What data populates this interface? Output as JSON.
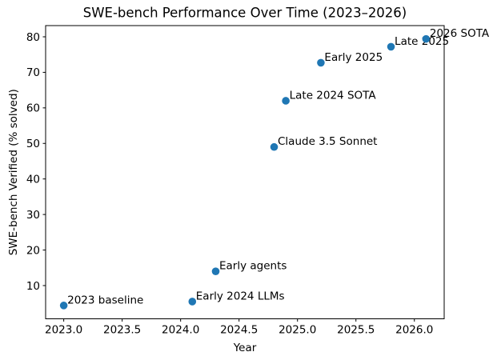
{
  "chart_data": {
    "type": "scatter",
    "title": "SWE-bench Performance Over Time (2023–2026)",
    "xlabel": "Year",
    "ylabel": "SWE-bench Verified (% solved)",
    "xlim": [
      2022.845,
      2026.255
    ],
    "ylim": [
      0.65,
      83.15
    ],
    "xticks": [
      2023.0,
      2023.5,
      2024.0,
      2024.5,
      2025.0,
      2025.5,
      2026.0
    ],
    "xtick_labels": [
      "2023.0",
      "2023.5",
      "2024.0",
      "2024.5",
      "2025.0",
      "2025.5",
      "2026.0"
    ],
    "yticks": [
      10,
      20,
      30,
      40,
      50,
      60,
      70,
      80
    ],
    "ytick_labels": [
      "10",
      "20",
      "30",
      "40",
      "50",
      "60",
      "70",
      "80"
    ],
    "grid": false,
    "legend": null,
    "marker_color": "#1f77b4",
    "axis_color": "#000000",
    "background": "#ffffff",
    "points": [
      {
        "x": 2023.0,
        "y": 4.4,
        "label": "2023 baseline"
      },
      {
        "x": 2024.1,
        "y": 5.5,
        "label": "Early 2024 LLMs"
      },
      {
        "x": 2024.3,
        "y": 14,
        "label": "Early agents"
      },
      {
        "x": 2024.8,
        "y": 49,
        "label": "Claude 3.5 Sonnet"
      },
      {
        "x": 2024.9,
        "y": 62,
        "label": "Late 2024 SOTA"
      },
      {
        "x": 2025.2,
        "y": 72.7,
        "label": "Early 2025"
      },
      {
        "x": 2025.8,
        "y": 77.2,
        "label": "Late 2025"
      },
      {
        "x": 2026.1,
        "y": 79.4,
        "label": "2026 SOTA"
      }
    ]
  }
}
